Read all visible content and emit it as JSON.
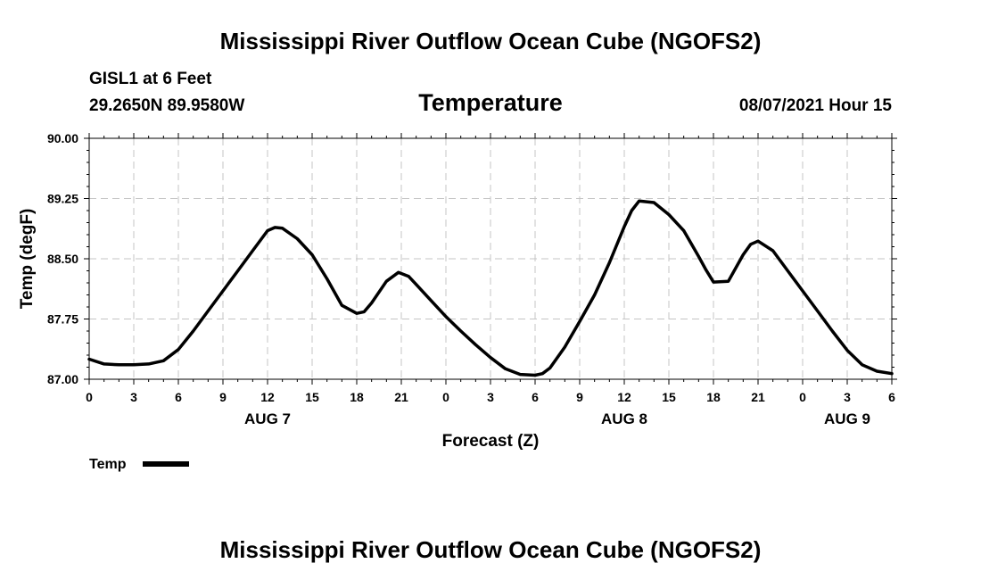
{
  "header": {
    "title": "Mississippi River Outflow Ocean Cube (NGOFS2)",
    "station": "GISL1 at 6 Feet",
    "coords": "29.2650N  89.9580W",
    "variable": "Temperature",
    "datetime": "08/07/2021 Hour 15"
  },
  "footer": {
    "title": "Mississippi River Outflow Ocean Cube (NGOFS2)"
  },
  "legend": {
    "label": "Temp",
    "color": "#000000"
  },
  "chart_data": {
    "type": "line",
    "title": "Temperature",
    "xlabel": "Forecast (Z)",
    "ylabel": "Temp (degF)",
    "xlim": [
      0,
      54
    ],
    "ylim": [
      87.0,
      90.0
    ],
    "grid": true,
    "legend_position": "bottom-left",
    "x_ticks": [
      0,
      3,
      6,
      9,
      12,
      15,
      18,
      21,
      24,
      27,
      30,
      33,
      36,
      39,
      42,
      45,
      48,
      51,
      54
    ],
    "x_tick_labels": [
      "0",
      "3",
      "6",
      "9",
      "12",
      "15",
      "18",
      "21",
      "0",
      "3",
      "6",
      "9",
      "12",
      "15",
      "18",
      "21",
      "0",
      "3",
      "6"
    ],
    "y_ticks": [
      87.0,
      87.75,
      88.5,
      89.25,
      90.0
    ],
    "y_tick_labels": [
      "87.00",
      "87.75",
      "88.50",
      "89.25",
      "90.00"
    ],
    "date_labels": [
      {
        "label": "AUG 7",
        "x": 12
      },
      {
        "label": "AUG 8",
        "x": 36
      },
      {
        "label": "AUG 9",
        "x": 51
      }
    ],
    "series": [
      {
        "name": "Temp",
        "color": "#000000",
        "x": [
          0,
          1,
          2,
          3,
          4,
          5,
          6,
          7,
          8,
          9,
          10,
          11,
          12,
          12.5,
          13,
          14,
          15,
          16,
          17,
          18,
          18.5,
          19,
          20,
          20.8,
          21.5,
          22,
          23,
          24,
          25,
          26,
          27,
          28,
          29,
          30,
          30.5,
          31,
          32,
          33,
          34,
          35,
          36,
          36.5,
          37,
          38,
          39,
          40,
          41,
          41.5,
          42,
          43,
          44,
          44.5,
          45,
          46,
          47,
          48,
          49,
          50,
          51,
          52,
          53,
          54
        ],
        "values": [
          87.25,
          87.19,
          87.18,
          87.18,
          87.19,
          87.23,
          87.37,
          87.6,
          87.85,
          88.1,
          88.35,
          88.6,
          88.85,
          88.89,
          88.88,
          88.75,
          88.55,
          88.25,
          87.92,
          87.82,
          87.84,
          87.95,
          88.22,
          88.33,
          88.28,
          88.18,
          87.98,
          87.78,
          87.6,
          87.43,
          87.27,
          87.13,
          87.06,
          87.05,
          87.07,
          87.14,
          87.4,
          87.72,
          88.05,
          88.45,
          88.9,
          89.1,
          89.22,
          89.2,
          89.05,
          88.85,
          88.53,
          88.36,
          88.21,
          88.22,
          88.55,
          88.68,
          88.72,
          88.6,
          88.35,
          88.1,
          87.85,
          87.6,
          87.36,
          87.18,
          87.1,
          87.07
        ]
      }
    ]
  }
}
